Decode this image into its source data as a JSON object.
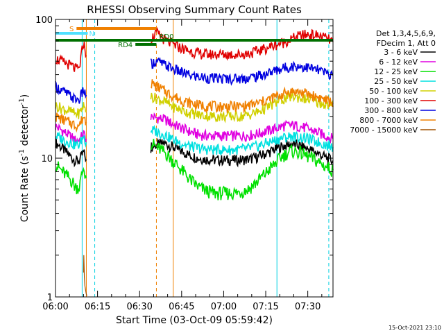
{
  "chart_data": {
    "type": "line",
    "title": "RHESSI Observing Summary Count Rates",
    "xlabel": "Start Time (03-Oct-09 05:59:42)",
    "ylabel": "Count Rate (s",
    "ylabel_sup": "-1",
    "ylabel_tail": " detector",
    "ylabel_end": ")",
    "y_scale": "log",
    "ylim": [
      1,
      100
    ],
    "xlim": [
      "06:00",
      "07:39"
    ],
    "x_ticks": [
      "06:00",
      "06:15",
      "06:30",
      "06:45",
      "07:00",
      "07:15",
      "07:30"
    ],
    "y_ticks": [
      "1",
      "10",
      "100"
    ],
    "grid": false,
    "legend_header": [
      "Det 1,3,4,5,6,9,",
      "FDecim 1, Att 0"
    ],
    "legend_placement": "right",
    "series": [
      {
        "name": "3 - 6 keV",
        "color": "#000000",
        "x": [
          0,
          3,
          6,
          7,
          8.5,
          10,
          11,
          12,
          30,
          34,
          36,
          39,
          42,
          45,
          48,
          51,
          54,
          57,
          60,
          63,
          66,
          69,
          72,
          75,
          78,
          81,
          84,
          87,
          90,
          93,
          96,
          99
        ],
        "y": [
          13,
          11.5,
          10,
          9.6,
          9.6,
          11,
          9.8,
          null,
          null,
          12,
          12.5,
          12.8,
          12,
          11.2,
          10.5,
          10,
          9.8,
          9.7,
          9.7,
          9.7,
          9.7,
          9.8,
          10.2,
          10.8,
          11.5,
          12.2,
          12.6,
          12.3,
          11.7,
          11,
          10.2,
          9.6
        ]
      },
      {
        "name": "6 - 12 keV",
        "color": "#e000e0",
        "x": [
          0,
          3,
          6,
          7,
          8.5,
          10,
          11,
          12,
          30,
          34,
          36,
          39,
          42,
          45,
          48,
          51,
          54,
          57,
          60,
          63,
          66,
          69,
          72,
          75,
          78,
          81,
          84,
          87,
          90,
          93,
          96,
          99
        ],
        "y": [
          17,
          15.5,
          14,
          13.5,
          13.5,
          15,
          13.8,
          null,
          null,
          20,
          19.5,
          19,
          17.5,
          16.5,
          15.5,
          14.8,
          14.5,
          14.5,
          14.5,
          14.5,
          14.5,
          14.6,
          15,
          15.6,
          16.2,
          17,
          17.3,
          17,
          16.3,
          15.5,
          14.6,
          13.8
        ]
      },
      {
        "name": "12 - 25 keV",
        "color": "#00e000",
        "x": [
          0,
          3,
          6,
          7,
          8.5,
          10,
          11,
          12,
          30,
          34,
          36,
          39,
          42,
          45,
          48,
          51,
          54,
          57,
          60,
          63,
          66,
          69,
          72,
          75,
          78,
          81,
          84,
          87,
          90,
          93,
          96,
          99
        ],
        "y": [
          9,
          7.8,
          6.8,
          6.2,
          6.2,
          8.5,
          7.2,
          null,
          null,
          13,
          12,
          11,
          9.5,
          8.2,
          7,
          6.2,
          5.8,
          5.6,
          5.6,
          5.6,
          5.7,
          6,
          6.8,
          7.8,
          9,
          10.4,
          11.3,
          11,
          10.3,
          9.6,
          8.8,
          8.2
        ]
      },
      {
        "name": "25 - 50 keV",
        "color": "#00e0e0",
        "x": [
          0,
          3,
          6,
          7,
          8.5,
          10,
          11,
          12,
          30,
          34,
          36,
          39,
          42,
          45,
          48,
          51,
          54,
          57,
          60,
          63,
          66,
          69,
          72,
          75,
          78,
          81,
          84,
          87,
          90,
          93,
          96,
          99
        ],
        "y": [
          14.5,
          13.5,
          12.8,
          12.5,
          12.5,
          14.5,
          13,
          null,
          null,
          16,
          15.5,
          14.8,
          13.6,
          12.8,
          12.2,
          11.8,
          11.6,
          11.5,
          11.5,
          11.5,
          11.6,
          11.8,
          12.2,
          12.8,
          13.4,
          14,
          14.4,
          14.2,
          13.8,
          13.2,
          12.6,
          12
        ]
      },
      {
        "name": "50 - 100 keV",
        "color": "#d0d000",
        "x": [
          0,
          3,
          6,
          7,
          8.5,
          10,
          11,
          12,
          30,
          34,
          36,
          39,
          42,
          45,
          48,
          51,
          54,
          57,
          60,
          63,
          66,
          69,
          72,
          75,
          78,
          81,
          84,
          87,
          90,
          93,
          96,
          99
        ],
        "y": [
          24,
          22.5,
          21.5,
          21,
          21,
          24,
          22,
          null,
          null,
          28,
          27,
          25.5,
          23.5,
          22.2,
          21.2,
          20.5,
          20.2,
          20,
          20,
          20,
          20,
          20.5,
          21.5,
          23,
          24.8,
          26.5,
          27.8,
          27.5,
          26.5,
          25.5,
          24.5,
          23.5
        ]
      },
      {
        "name": "100 - 300 keV",
        "color": "#e00000",
        "x": [
          0,
          3,
          6,
          7,
          8.5,
          10,
          11,
          12,
          30,
          34,
          36,
          39,
          42,
          45,
          48,
          51,
          54,
          57,
          60,
          63,
          66,
          69,
          72,
          75,
          78,
          81,
          84,
          87,
          90,
          93,
          96,
          99
        ],
        "y": [
          52,
          49,
          46,
          44,
          44,
          68,
          55,
          null,
          null,
          72,
          80,
          71,
          66,
          62,
          59,
          57,
          56,
          56,
          56,
          56,
          56,
          57,
          59,
          62,
          65,
          68,
          72,
          76,
          78,
          77,
          74,
          69
        ]
      },
      {
        "name": "300 - 800 keV",
        "color": "#0000e0",
        "x": [
          0,
          3,
          6,
          7,
          8.5,
          10,
          11,
          12,
          30,
          34,
          36,
          39,
          42,
          45,
          48,
          51,
          54,
          57,
          60,
          63,
          66,
          69,
          72,
          75,
          78,
          81,
          84,
          87,
          90,
          93,
          96,
          99
        ],
        "y": [
          33,
          30,
          27.5,
          26.5,
          26.5,
          31,
          28.5,
          null,
          null,
          48,
          50,
          47,
          44,
          41.5,
          39.5,
          38.5,
          38,
          37.5,
          37.5,
          37.5,
          37.5,
          38,
          39,
          40.5,
          42.5,
          44.5,
          46,
          46,
          45,
          43.5,
          41.5,
          39.5
        ]
      },
      {
        "name": "800 - 7000 keV",
        "color": "#f08000",
        "x": [
          0,
          3,
          6,
          7,
          8.5,
          10,
          11,
          12,
          30,
          34,
          36,
          39,
          42,
          45,
          48,
          51,
          54,
          57,
          60,
          63,
          66,
          69,
          72,
          75,
          78,
          81,
          84,
          87,
          90,
          93,
          96,
          99
        ],
        "y": [
          20,
          18.8,
          17.8,
          17.3,
          17.3,
          20,
          18.2,
          null,
          null,
          35,
          33,
          30.5,
          28,
          26.2,
          25,
          24.2,
          23.8,
          23.6,
          23.6,
          23.6,
          23.6,
          24,
          24.8,
          26,
          27.5,
          29,
          30.3,
          30,
          29,
          27.8,
          26.5,
          25
        ]
      },
      {
        "name": "7000 - 15000 keV",
        "color": "#a05000",
        "x": [
          10,
          10.1,
          10.3,
          10.5,
          10.8,
          11,
          11.2
        ],
        "y": [
          1.5,
          2,
          1.4,
          1.2,
          1.1,
          1.05,
          1.02
        ]
      }
    ],
    "attenuator_bars": [
      {
        "label": "S",
        "color": "#f08000",
        "start": 7.5,
        "end": 36
      },
      {
        "label": "N",
        "color": "#50e0ff",
        "start": 0,
        "end": 11.5
      },
      {
        "label": "RD0",
        "color": "#007000",
        "start": 0,
        "end": 99
      },
      {
        "label": "RD4",
        "color": "#007000",
        "start": 28.5,
        "end": 36
      }
    ],
    "event_lines": [
      {
        "x": 9.5,
        "color": "#00d0e0",
        "style": "solid"
      },
      {
        "x": 14,
        "color": "#00d0e0",
        "style": "dashed"
      },
      {
        "x": 11,
        "color": "#f08000",
        "style": "solid"
      },
      {
        "x": 36,
        "color": "#f08000",
        "style": "dashed"
      },
      {
        "x": 42,
        "color": "#f08000",
        "style": "solid"
      },
      {
        "x": 79,
        "color": "#00d0e0",
        "style": "solid"
      },
      {
        "x": 97.5,
        "color": "#00d0e0",
        "style": "dashed"
      }
    ]
  },
  "footer_timestamp": "15-Oct-2021 23:10"
}
